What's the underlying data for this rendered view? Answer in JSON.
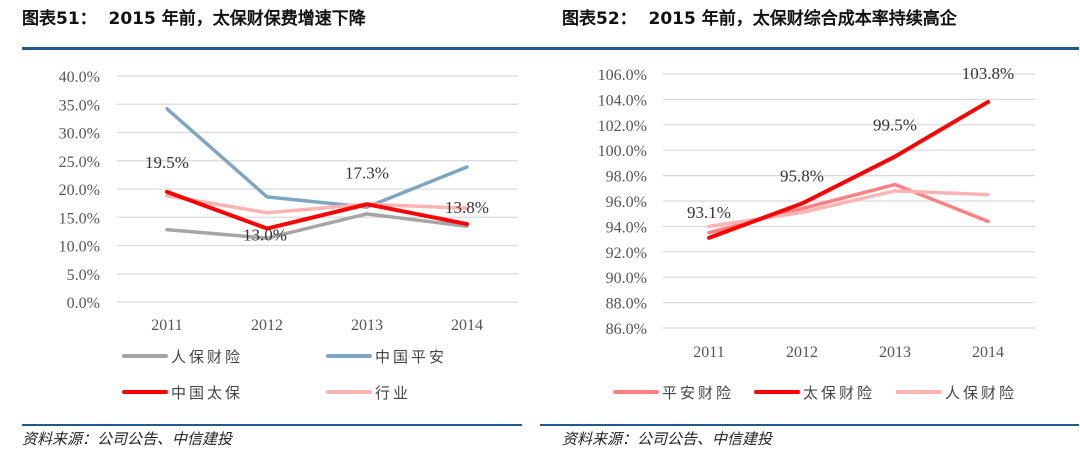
{
  "left": {
    "title_prefix": "图表51：",
    "title_text": "2015 年前，太保财保费增速下降",
    "source": "资料来源：公司公告、中信建投"
  },
  "right": {
    "title_prefix": "图表52：",
    "title_text": "2015 年前，太保财综合成本率持续高企",
    "source": "资料来源：公司公告、中信建投"
  },
  "chart_data": [
    {
      "type": "line",
      "title": "2015 年前，太保财保费增速下降",
      "categories": [
        "2011",
        "2012",
        "2013",
        "2014"
      ],
      "ylim": [
        0,
        40
      ],
      "yticks": [
        "0.0%",
        "5.0%",
        "10.0%",
        "15.0%",
        "20.0%",
        "25.0%",
        "30.0%",
        "35.0%",
        "40.0%"
      ],
      "ytick_values": [
        0,
        5,
        10,
        15,
        20,
        25,
        30,
        35,
        40
      ],
      "grid": true,
      "legend": "bottom",
      "series": [
        {
          "name": "人保财险",
          "color": "#a5a5a5",
          "values": [
            12.8,
            11.3,
            15.6,
            13.4
          ]
        },
        {
          "name": "中国平安",
          "color": "#7ea6c3",
          "values": [
            34.2,
            18.6,
            16.8,
            23.9
          ]
        },
        {
          "name": "中国太保",
          "color": "#ff0000",
          "values": [
            19.5,
            13.0,
            17.3,
            13.8
          ],
          "labels": [
            "19.5%",
            "13.0%",
            "17.3%",
            "13.8%"
          ]
        },
        {
          "name": "行业",
          "color": "#ffb3b3",
          "values": [
            18.8,
            15.8,
            17.3,
            16.6
          ]
        }
      ]
    },
    {
      "type": "line",
      "title": "2015 年前，太保财综合成本率持续高企",
      "categories": [
        "2011",
        "2012",
        "2013",
        "2014"
      ],
      "ylim": [
        86,
        106
      ],
      "yticks": [
        "86.0%",
        "88.0%",
        "90.0%",
        "92.0%",
        "94.0%",
        "96.0%",
        "98.0%",
        "100.0%",
        "102.0%",
        "104.0%",
        "106.0%"
      ],
      "ytick_values": [
        86,
        88,
        90,
        92,
        94,
        96,
        98,
        100,
        102,
        104,
        106
      ],
      "grid": true,
      "legend": "bottom",
      "series": [
        {
          "name": "平安财险",
          "color": "#ff8080",
          "values": [
            93.5,
            95.4,
            97.3,
            94.4
          ]
        },
        {
          "name": "太保财险",
          "color": "#ff0000",
          "values": [
            93.1,
            95.8,
            99.5,
            103.8
          ],
          "labels": [
            "93.1%",
            "95.8%",
            "99.5%",
            "103.8%"
          ]
        },
        {
          "name": "人保财险",
          "color": "#ffb3b3",
          "values": [
            94.0,
            95.1,
            96.8,
            96.5
          ]
        }
      ]
    }
  ]
}
